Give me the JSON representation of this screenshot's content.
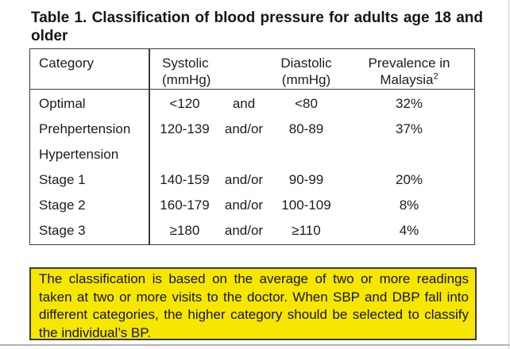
{
  "page": {
    "title_line1": "Table 1. Classification of blood pressure for adults age 18 and",
    "title_line2": "older"
  },
  "table": {
    "headers": {
      "category": "Category",
      "systolic_line1": "Systolic",
      "systolic_line2": "(mmHg)",
      "diastolic_line1": "Diastolic",
      "diastolic_line2": "(mmHg)",
      "prevalence_line1": "Prevalence in",
      "prevalence_line2": "Malaysia",
      "prevalence_sup": "2"
    },
    "rows": [
      {
        "category": "Optimal",
        "systolic": "<120",
        "connector": "and",
        "diastolic": "<80",
        "prevalence": "32%"
      },
      {
        "category": "Prehpertension",
        "systolic": "120-139",
        "connector": "and/or",
        "diastolic": "80-89",
        "prevalence": "37%"
      },
      {
        "category": "Hypertension",
        "systolic": "",
        "connector": "",
        "diastolic": "",
        "prevalence": ""
      },
      {
        "category": "Stage 1",
        "systolic": "140-159",
        "connector": "and/or",
        "diastolic": "90-99",
        "prevalence": "20%"
      },
      {
        "category": "Stage 2",
        "systolic": "160-179",
        "connector": "and/or",
        "diastolic": "100-109",
        "prevalence": "8%"
      },
      {
        "category": "Stage 3",
        "systolic": "≥180",
        "connector": "and/or",
        "diastolic": "≥110",
        "prevalence": "4%"
      }
    ]
  },
  "note": {
    "text": "The classification is based on the average of two or more readings taken at two or more visits to the doctor. When SBP and DBP fall into different categories, the higher category should be selected to classify the individual’s BP."
  },
  "colors": {
    "highlight_yellow": "#f7e600",
    "border_dark": "#3a3a3a",
    "text": "#1c1c1c",
    "page_edge_gray": "#b3b3b3"
  }
}
